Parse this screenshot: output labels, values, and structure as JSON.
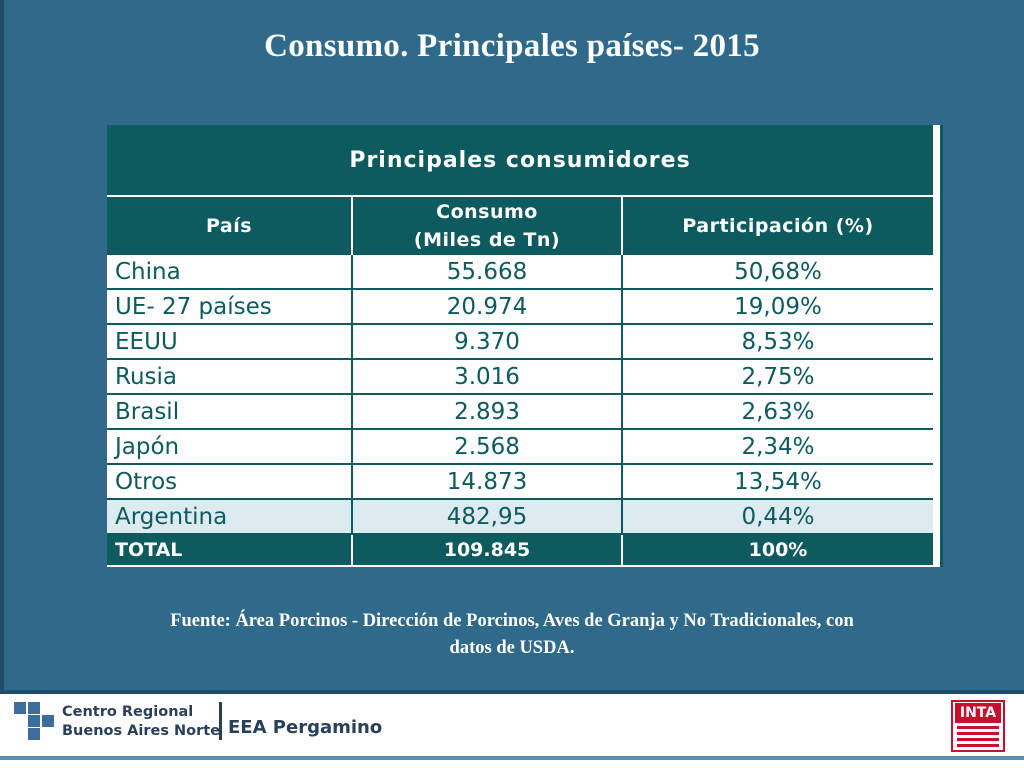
{
  "title": "Consumo. Principales países- 2015",
  "table": {
    "caption": "Principales consumidores",
    "headers": {
      "country": "País",
      "consumption_line1": "Consumo",
      "consumption_line2": "(Miles de Tn)",
      "share": "Participación (%)"
    },
    "rows": [
      {
        "country": "China",
        "consumption": "55.668",
        "share": "50,68%"
      },
      {
        "country": "UE- 27 países",
        "consumption": "20.974",
        "share": "19,09%"
      },
      {
        "country": "EEUU",
        "consumption": "9.370",
        "share": "8,53%"
      },
      {
        "country": "Rusia",
        "consumption": "3.016",
        "share": "2,75%"
      },
      {
        "country": "Brasil",
        "consumption": "2.893",
        "share": "2,63%"
      },
      {
        "country": "Japón",
        "consumption": "2.568",
        "share": "2,34%"
      },
      {
        "country": "Otros",
        "consumption": "14.873",
        "share": "13,54%"
      },
      {
        "country": "Argentina",
        "consumption": "482,95",
        "share": "0,44%"
      }
    ],
    "total": {
      "label": "TOTAL",
      "consumption": "109.845",
      "share": "100%"
    }
  },
  "source_line1": "Fuente: Área Porcinos - Dirección de Porcinos, Aves de Granja y No Tradicionales, con",
  "source_line2": "datos de USDA.",
  "footer": {
    "brand_line1": "Centro Regional",
    "brand_line2": "Buenos Aires Norte",
    "unit": "EEA Pergamino",
    "logo_text": "INTA"
  },
  "colors": {
    "background": "#2f6a8a",
    "table_header": "#0d5a5f",
    "highlight_row": "#dcebf0",
    "inta_red": "#c8102e"
  }
}
